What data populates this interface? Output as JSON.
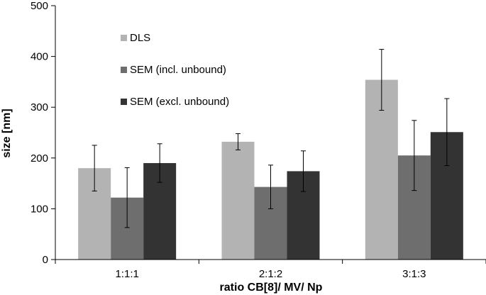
{
  "chart_data": {
    "type": "bar",
    "title": "",
    "xlabel": "ratio CB[8]/ MV/ Np",
    "ylabel": "size [nm]",
    "ylim": [
      0,
      500
    ],
    "yticks": [
      0,
      100,
      200,
      300,
      400,
      500
    ],
    "grid": false,
    "legend_position": "top-left",
    "categories": [
      "1:1:1",
      "2:1:2",
      "3:1:3"
    ],
    "series": [
      {
        "name": "DLS",
        "color": "#b3b3b3",
        "values": [
          180,
          232,
          354
        ],
        "errors": [
          45,
          16,
          60
        ]
      },
      {
        "name": "SEM (incl. unbound)",
        "color": "#6e6e6e",
        "values": [
          122,
          143,
          205
        ],
        "errors": [
          59,
          43,
          69
        ]
      },
      {
        "name": "SEM (excl. unbound)",
        "color": "#333333",
        "values": [
          190,
          174,
          251
        ],
        "errors": [
          38,
          40,
          66
        ]
      }
    ]
  }
}
